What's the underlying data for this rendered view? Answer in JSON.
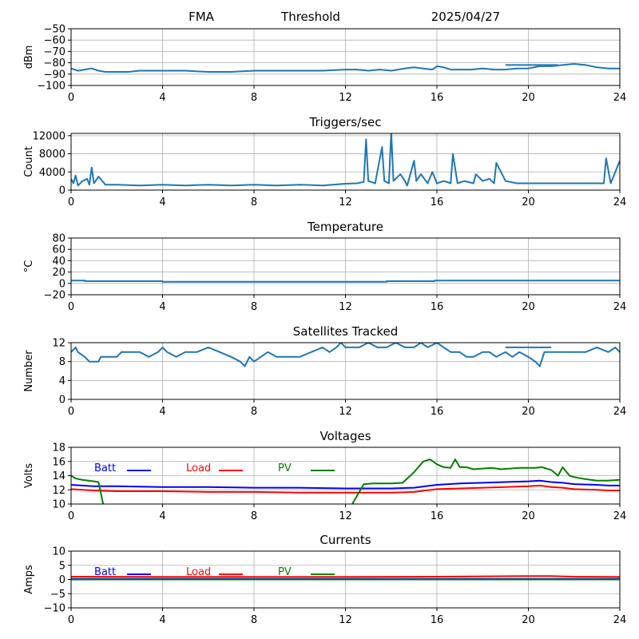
{
  "header": {
    "station": "FMA",
    "type": "Threshold",
    "date": "2025/04/27"
  },
  "colors": {
    "blue_series": "#1f77b4",
    "batt": "#0000ff",
    "load": "#ff0000",
    "pv": "#008000",
    "grid": "#b0b0b0"
  },
  "chart_data": [
    {
      "id": "threshold",
      "type": "line",
      "title": "",
      "ylabel": "dBm",
      "xlim": [
        0,
        24
      ],
      "xticks": [
        0,
        4,
        8,
        12,
        16,
        20,
        24
      ],
      "ylim": [
        -100,
        -50
      ],
      "yticks": [
        -100,
        -90,
        -80,
        -70,
        -60,
        -50
      ],
      "ytick_labels": [
        "−100",
        "−90",
        "−80",
        "−70",
        "−60",
        "−50"
      ],
      "grid": true,
      "series": [
        {
          "color": "#1f77b4",
          "x": [
            0,
            0.3,
            0.6,
            0.9,
            1.2,
            1.5,
            2,
            2.5,
            3,
            3.5,
            4,
            5,
            6,
            7,
            8,
            9,
            10,
            11,
            12,
            12.5,
            13,
            13.5,
            14,
            14.3,
            14.6,
            15,
            15.4,
            15.8,
            16,
            16.3,
            16.6,
            17,
            17.5,
            18,
            18.5,
            19,
            19.5,
            20,
            20.5,
            21,
            21.5,
            22,
            22.5,
            23,
            23.5,
            24
          ],
          "y": [
            -85,
            -87,
            -86,
            -85,
            -87,
            -88,
            -88,
            -88,
            -87,
            -87,
            -87,
            -87,
            -88,
            -88,
            -87,
            -87,
            -87,
            -87,
            -86,
            -86,
            -87,
            -86,
            -87,
            -86,
            -85,
            -84,
            -85,
            -86,
            -83,
            -84,
            -86,
            -86,
            -86,
            -85,
            -86,
            -86,
            -85,
            -85,
            -83,
            -83,
            -82,
            -81,
            -82,
            -84,
            -85,
            -85
          ]
        },
        {
          "color": "#1f77b4",
          "x": [
            19,
            21.3
          ],
          "y": [
            -82,
            -82
          ]
        }
      ]
    },
    {
      "id": "triggers",
      "type": "line",
      "title": "Triggers/sec",
      "ylabel": "Count",
      "xlim": [
        0,
        24
      ],
      "xticks": [
        0,
        4,
        8,
        12,
        16,
        20,
        24
      ],
      "ylim": [
        0,
        12500
      ],
      "yticks": [
        0,
        4000,
        8000,
        12000
      ],
      "ytick_labels": [
        "0",
        "4000",
        "8000",
        "12000"
      ],
      "grid": true,
      "series": [
        {
          "color": "#1f77b4",
          "x": [
            0,
            0.1,
            0.2,
            0.3,
            0.5,
            0.7,
            0.8,
            0.9,
            1.0,
            1.2,
            1.5,
            2,
            3,
            4,
            5,
            6,
            7,
            8,
            9,
            10,
            11,
            12,
            12.5,
            12.8,
            12.9,
            13.0,
            13.3,
            13.6,
            13.7,
            13.9,
            14.0,
            14.1,
            14.4,
            14.6,
            14.7,
            15.0,
            15.1,
            15.3,
            15.6,
            15.8,
            16.0,
            16.3,
            16.6,
            16.7,
            16.9,
            17.2,
            17.6,
            17.7,
            18.0,
            18.3,
            18.5,
            18.6,
            19.0,
            19.5,
            20,
            21,
            22,
            23,
            23.3,
            23.4,
            23.6,
            24.0
          ],
          "y": [
            2500,
            1500,
            3200,
            1000,
            2000,
            2500,
            1200,
            5000,
            1500,
            3000,
            1200,
            1200,
            1000,
            1200,
            1000,
            1200,
            1000,
            1200,
            1000,
            1200,
            1000,
            1400,
            1500,
            1800,
            11200,
            2000,
            1500,
            9500,
            2000,
            1500,
            12800,
            2000,
            3500,
            2000,
            1000,
            6500,
            2000,
            3500,
            1500,
            4000,
            1500,
            2000,
            1500,
            8000,
            1500,
            2000,
            1500,
            3500,
            2000,
            2500,
            1500,
            6000,
            2000,
            1500,
            1500,
            1500,
            1500,
            1500,
            1500,
            7000,
            1500,
            6500
          ]
        }
      ]
    },
    {
      "id": "temperature",
      "type": "line",
      "title": "Temperature",
      "ylabel": "°C",
      "xlim": [
        0,
        24
      ],
      "xticks": [
        0,
        4,
        8,
        12,
        16,
        20,
        24
      ],
      "ylim": [
        -20,
        80
      ],
      "yticks": [
        -20,
        0,
        20,
        40,
        60,
        80
      ],
      "ytick_labels": [
        "−20",
        "0",
        "20",
        "40",
        "60",
        "80"
      ],
      "grid": true,
      "series": [
        {
          "color": "#1f77b4",
          "x": [
            0,
            0.6,
            0.6,
            4,
            4,
            13.8,
            13.8,
            15.9,
            15.9,
            24
          ],
          "y": [
            5,
            5,
            4,
            4,
            3,
            3,
            4,
            4,
            5,
            5
          ]
        }
      ]
    },
    {
      "id": "satellites",
      "type": "line",
      "title": "Satellites Tracked",
      "ylabel": "Number",
      "xlim": [
        0,
        24
      ],
      "xticks": [
        0,
        4,
        8,
        12,
        16,
        20,
        24
      ],
      "ylim": [
        0,
        12
      ],
      "yticks": [
        0,
        4,
        8,
        12
      ],
      "ytick_labels": [
        "0",
        "4",
        "8",
        "12"
      ],
      "grid": true,
      "series": [
        {
          "color": "#1f77b4",
          "x": [
            0,
            0.2,
            0.3,
            0.6,
            0.8,
            1.2,
            1.3,
            2,
            2.2,
            3,
            3.4,
            3.8,
            4,
            4.2,
            4.6,
            5,
            5.5,
            6,
            6.5,
            7,
            7.4,
            7.6,
            7.8,
            8,
            8.3,
            8.6,
            9,
            9.5,
            10,
            10.5,
            11,
            11.3,
            11.6,
            11.8,
            12,
            12.3,
            12.6,
            13,
            13.4,
            13.8,
            14.2,
            14.6,
            15,
            15.3,
            15.6,
            16,
            16.3,
            16.6,
            17,
            17.3,
            17.6,
            18,
            18.3,
            18.6,
            19,
            19.3,
            19.6,
            20,
            20.3,
            20.5,
            20.7,
            21,
            21.5,
            22,
            22.5,
            23,
            23.5,
            23.8,
            24
          ],
          "y": [
            10,
            11,
            10,
            9,
            8,
            8,
            9,
            9,
            10,
            10,
            9,
            10,
            11,
            10,
            9,
            10,
            10,
            11,
            10,
            9,
            8,
            7,
            9,
            8,
            9,
            10,
            9,
            9,
            9,
            10,
            11,
            10,
            11,
            12,
            11,
            11,
            11,
            12,
            11,
            11,
            12,
            11,
            11,
            12,
            11,
            12,
            11,
            10,
            10,
            9,
            9,
            10,
            10,
            9,
            10,
            9,
            10,
            9,
            8,
            7,
            10,
            10,
            10,
            10,
            10,
            11,
            10,
            11,
            10
          ]
        },
        {
          "color": "#1f77b4",
          "x": [
            19,
            21
          ],
          "y": [
            11,
            11
          ]
        }
      ]
    },
    {
      "id": "voltages",
      "type": "line",
      "title": "Voltages",
      "ylabel": "Volts",
      "xlim": [
        0,
        24
      ],
      "xticks": [
        0,
        4,
        8,
        12,
        16,
        20,
        24
      ],
      "ylim": [
        10,
        18
      ],
      "yticks": [
        10,
        12,
        14,
        16,
        18
      ],
      "ytick_labels": [
        "10",
        "12",
        "14",
        "16",
        "18"
      ],
      "grid": true,
      "legend": "top-left",
      "series": [
        {
          "name": "Batt",
          "color": "#0000ff",
          "x": [
            0,
            1,
            2,
            4,
            6,
            8,
            10,
            12,
            13,
            14,
            15,
            15.5,
            16,
            17,
            18,
            19,
            20,
            20.5,
            21,
            21.5,
            22,
            23,
            23.5,
            24
          ],
          "y": [
            12.7,
            12.5,
            12.5,
            12.4,
            12.4,
            12.3,
            12.3,
            12.2,
            12.2,
            12.2,
            12.3,
            12.5,
            12.7,
            12.9,
            13.0,
            13.1,
            13.2,
            13.3,
            13.1,
            13.0,
            12.8,
            12.7,
            12.6,
            12.6
          ]
        },
        {
          "name": "Load",
          "color": "#ff0000",
          "x": [
            0,
            1,
            2,
            4,
            6,
            8,
            10,
            12,
            13,
            14,
            15,
            15.5,
            16,
            17,
            18,
            19,
            20,
            20.5,
            21,
            21.5,
            22,
            23,
            23.5,
            24
          ],
          "y": [
            12.1,
            11.9,
            11.8,
            11.8,
            11.7,
            11.7,
            11.6,
            11.6,
            11.6,
            11.6,
            11.7,
            11.9,
            12.1,
            12.2,
            12.3,
            12.4,
            12.5,
            12.6,
            12.4,
            12.3,
            12.1,
            12.0,
            11.9,
            11.9
          ]
        },
        {
          "name": "PV",
          "color": "#008000",
          "x": [
            0,
            0.2,
            0.5,
            1.0,
            1.2,
            1.4,
            1.6,
            11.5,
            12.3,
            12.8,
            13.2,
            14,
            14.5,
            15.0,
            15.4,
            15.7,
            16.0,
            16.3,
            16.6,
            16.8,
            17.0,
            17.3,
            17.6,
            18,
            18.4,
            18.8,
            19.2,
            19.6,
            20,
            20.3,
            20.6,
            21,
            21.3,
            21.5,
            21.8,
            22,
            22.5,
            23,
            23.5,
            24
          ],
          "y": [
            14.0,
            13.6,
            13.4,
            13.2,
            13.1,
            10.0,
            8.0,
            8.0,
            10.0,
            12.8,
            12.9,
            12.9,
            13.0,
            14.5,
            16.0,
            16.3,
            15.6,
            15.2,
            15.1,
            16.3,
            15.2,
            15.2,
            14.9,
            15.0,
            15.1,
            14.9,
            15.0,
            15.1,
            15.1,
            15.1,
            15.2,
            14.8,
            14.0,
            15.2,
            14.0,
            13.8,
            13.5,
            13.3,
            13.3,
            13.4
          ]
        }
      ]
    },
    {
      "id": "currents",
      "type": "line",
      "title": "Currents",
      "ylabel": "Amps",
      "xlim": [
        0,
        24
      ],
      "xticks": [
        0,
        4,
        8,
        12,
        16,
        20,
        24
      ],
      "ylim": [
        -10,
        10
      ],
      "yticks": [
        -10,
        -5,
        0,
        5,
        10
      ],
      "ytick_labels": [
        "−10",
        "−5",
        "0",
        "5",
        "10"
      ],
      "grid": true,
      "legend": "top-left",
      "series": [
        {
          "name": "Batt",
          "color": "#0000ff",
          "x": [
            0,
            24
          ],
          "y": [
            0.2,
            0.2
          ]
        },
        {
          "name": "Load",
          "color": "#ff0000",
          "x": [
            0,
            4,
            8,
            12,
            16,
            18,
            20,
            21,
            22,
            24
          ],
          "y": [
            1.0,
            0.9,
            0.9,
            0.9,
            1.0,
            1.1,
            1.2,
            1.2,
            1.0,
            0.9
          ]
        },
        {
          "name": "PV",
          "color": "#008000",
          "x": [
            0,
            24
          ],
          "y": [
            0.0,
            0.0
          ]
        }
      ]
    }
  ]
}
